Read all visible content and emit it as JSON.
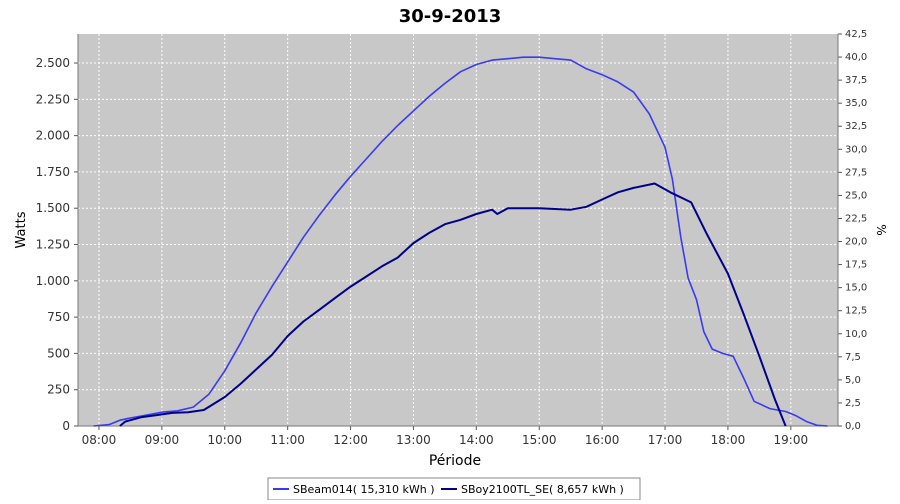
{
  "chart_data": {
    "type": "line",
    "title": "30-9-2013",
    "xlabel": "Période",
    "ylabel": "Watts",
    "y2label": "%",
    "grid": true,
    "legend_position": "bottom",
    "x_ticks": [
      "08:00",
      "09:00",
      "10:00",
      "11:00",
      "12:00",
      "13:00",
      "14:00",
      "15:00",
      "16:00",
      "17:00",
      "18:00",
      "19:00"
    ],
    "xlim": [
      "07:40",
      "19:45"
    ],
    "ylim": [
      0,
      2700
    ],
    "y_ticks": [
      0,
      250,
      500,
      750,
      1000,
      1250,
      1500,
      1750,
      2000,
      2250,
      2500
    ],
    "y_tick_labels": [
      "0",
      "250",
      "500",
      "750",
      "1.000",
      "1.250",
      "1.500",
      "1.750",
      "2.000",
      "2.250",
      "2.500"
    ],
    "y2lim": [
      0,
      42.5
    ],
    "y2_tick_labels": [
      "0,0",
      "2,5",
      "5,0",
      "7,5",
      "10,0",
      "12,5",
      "15,0",
      "17,5",
      "20,0",
      "22,5",
      "25,0",
      "27,5",
      "30,0",
      "32,5",
      "35,0",
      "37,5",
      "40,0",
      "42,5"
    ],
    "colors": {
      "plot_bg": "#c8c8c8",
      "grid": "#ffffff"
    },
    "series": [
      {
        "name": "SBeam014( 15,310 kWh )",
        "color": "#3a3af0",
        "points": [
          [
            "07:55",
            0
          ],
          [
            "08:10",
            10
          ],
          [
            "08:20",
            40
          ],
          [
            "08:30",
            55
          ],
          [
            "08:45",
            75
          ],
          [
            "09:00",
            95
          ],
          [
            "09:15",
            105
          ],
          [
            "09:30",
            130
          ],
          [
            "09:45",
            220
          ],
          [
            "10:00",
            380
          ],
          [
            "10:15",
            570
          ],
          [
            "10:30",
            780
          ],
          [
            "10:45",
            960
          ],
          [
            "11:00",
            1130
          ],
          [
            "11:15",
            1300
          ],
          [
            "11:30",
            1450
          ],
          [
            "11:45",
            1590
          ],
          [
            "12:00",
            1720
          ],
          [
            "12:15",
            1840
          ],
          [
            "12:30",
            1960
          ],
          [
            "12:45",
            2070
          ],
          [
            "13:00",
            2170
          ],
          [
            "13:15",
            2270
          ],
          [
            "13:30",
            2360
          ],
          [
            "13:45",
            2440
          ],
          [
            "14:00",
            2490
          ],
          [
            "14:15",
            2520
          ],
          [
            "14:30",
            2530
          ],
          [
            "14:45",
            2540
          ],
          [
            "15:00",
            2540
          ],
          [
            "15:15",
            2530
          ],
          [
            "15:30",
            2520
          ],
          [
            "15:45",
            2460
          ],
          [
            "16:00",
            2420
          ],
          [
            "16:15",
            2370
          ],
          [
            "16:30",
            2300
          ],
          [
            "16:45",
            2150
          ],
          [
            "17:00",
            1920
          ],
          [
            "17:07",
            1700
          ],
          [
            "17:15",
            1300
          ],
          [
            "17:22",
            1020
          ],
          [
            "17:30",
            870
          ],
          [
            "17:37",
            650
          ],
          [
            "17:45",
            530
          ],
          [
            "17:55",
            500
          ],
          [
            "18:05",
            480
          ],
          [
            "18:15",
            330
          ],
          [
            "18:25",
            170
          ],
          [
            "18:40",
            120
          ],
          [
            "18:55",
            100
          ],
          [
            "19:05",
            70
          ],
          [
            "19:15",
            30
          ],
          [
            "19:25",
            5
          ],
          [
            "19:35",
            0
          ]
        ]
      },
      {
        "name": "SBoy2100TL_SE( 8,657 kWh )",
        "color": "#00008b",
        "points": [
          [
            "08:20",
            0
          ],
          [
            "08:25",
            30
          ],
          [
            "08:40",
            60
          ],
          [
            "08:55",
            75
          ],
          [
            "09:10",
            90
          ],
          [
            "09:25",
            95
          ],
          [
            "09:40",
            110
          ],
          [
            "10:00",
            200
          ],
          [
            "10:15",
            290
          ],
          [
            "10:30",
            390
          ],
          [
            "10:45",
            490
          ],
          [
            "11:00",
            620
          ],
          [
            "11:15",
            720
          ],
          [
            "11:30",
            800
          ],
          [
            "11:45",
            880
          ],
          [
            "12:00",
            960
          ],
          [
            "12:15",
            1030
          ],
          [
            "12:30",
            1100
          ],
          [
            "12:45",
            1160
          ],
          [
            "13:00",
            1260
          ],
          [
            "13:15",
            1330
          ],
          [
            "13:30",
            1390
          ],
          [
            "13:45",
            1420
          ],
          [
            "14:00",
            1460
          ],
          [
            "14:15",
            1490
          ],
          [
            "14:20",
            1460
          ],
          [
            "14:30",
            1500
          ],
          [
            "15:00",
            1500
          ],
          [
            "15:30",
            1490
          ],
          [
            "15:45",
            1510
          ],
          [
            "16:00",
            1560
          ],
          [
            "16:15",
            1610
          ],
          [
            "16:30",
            1640
          ],
          [
            "16:50",
            1670
          ],
          [
            "17:05",
            1610
          ],
          [
            "17:25",
            1540
          ],
          [
            "17:40",
            1320
          ],
          [
            "18:00",
            1050
          ],
          [
            "18:15",
            770
          ],
          [
            "18:30",
            480
          ],
          [
            "18:45",
            180
          ],
          [
            "18:55",
            0
          ]
        ]
      }
    ]
  }
}
